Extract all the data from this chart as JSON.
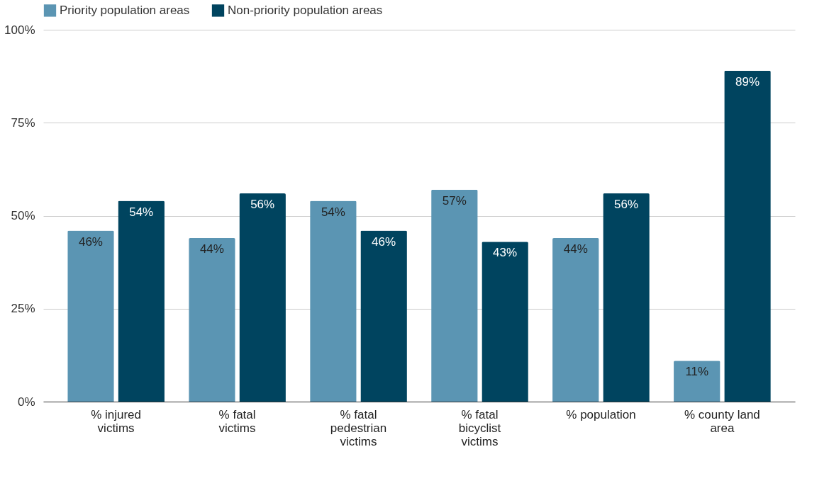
{
  "chart_data": {
    "type": "bar",
    "categories": [
      "% injured victims",
      "% fatal victims",
      "% fatal pedestrian victims",
      "% fatal bicyclist victims",
      "% population",
      "% county land area"
    ],
    "series": [
      {
        "name": "Priority population areas",
        "color": "#5b95b3",
        "values": [
          46,
          44,
          54,
          57,
          44,
          11
        ],
        "value_labels": [
          "46%",
          "44%",
          "54%",
          "57%",
          "44%",
          "11%"
        ]
      },
      {
        "name": "Non-priority population areas",
        "color": "#00445f",
        "values": [
          54,
          56,
          46,
          43,
          56,
          89
        ],
        "value_labels": [
          "54%",
          "56%",
          "46%",
          "43%",
          "56%",
          "89%"
        ]
      }
    ],
    "ylim": [
      0,
      100
    ],
    "yticks": [
      {
        "value": 0,
        "label": "0%"
      },
      {
        "value": 25,
        "label": "25%"
      },
      {
        "value": 50,
        "label": "50%"
      },
      {
        "value": 75,
        "label": "75%"
      },
      {
        "value": 100,
        "label": "100%"
      }
    ],
    "grid": "y",
    "legend": "top"
  }
}
